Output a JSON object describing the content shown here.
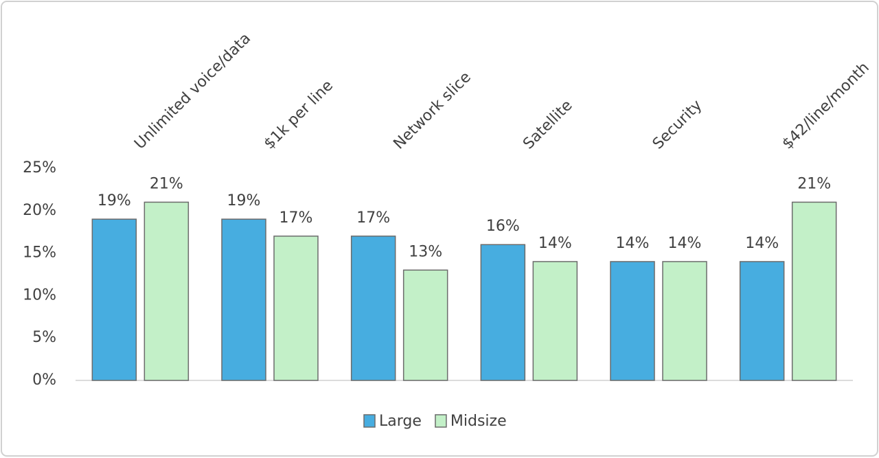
{
  "chart_data": {
    "type": "bar",
    "categories": [
      "Unlimited voice/data",
      "$1k per line",
      "Network slice",
      "Satellite",
      "Security",
      "$42/line/month"
    ],
    "series": [
      {
        "name": "Large",
        "color": "#47ade0",
        "values": [
          19,
          19,
          17,
          16,
          14,
          14
        ],
        "value_labels": [
          "19%",
          "19%",
          "17%",
          "16%",
          "14%",
          "14%"
        ]
      },
      {
        "name": "Midsize",
        "color": "#c3f0c8",
        "values": [
          21,
          17,
          13,
          14,
          14,
          21
        ],
        "value_labels": [
          "21%",
          "17%",
          "13%",
          "14%",
          "14%",
          "21%"
        ]
      }
    ],
    "ylim": [
      0,
      25
    ],
    "yticks": [
      {
        "value": 0,
        "label": "0%"
      },
      {
        "value": 5,
        "label": "5%"
      },
      {
        "value": 10,
        "label": "10%"
      },
      {
        "value": 15,
        "label": "15%"
      },
      {
        "value": 20,
        "label": "20%"
      },
      {
        "value": 25,
        "label": "25%"
      }
    ],
    "grid": false,
    "legend": "bottom"
  }
}
